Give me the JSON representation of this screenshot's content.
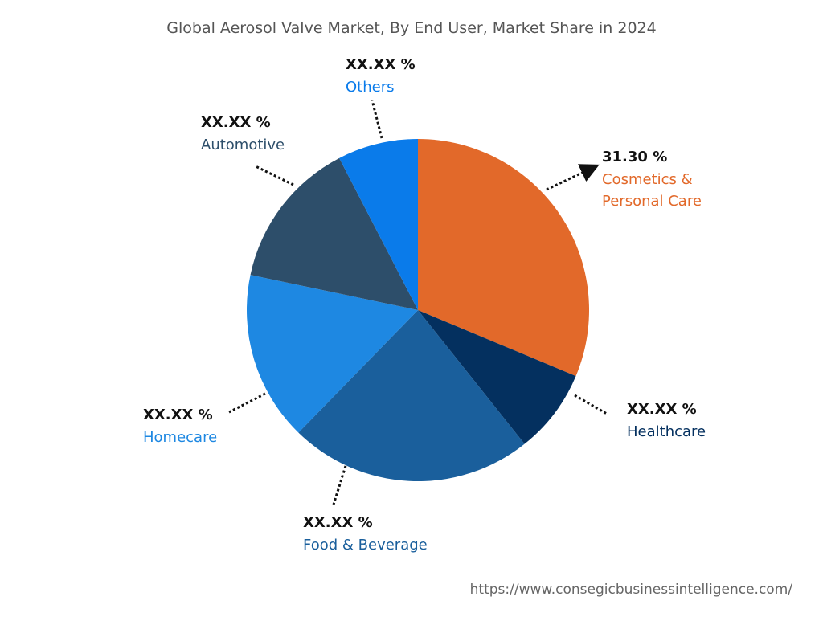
{
  "chart_data": {
    "type": "pie",
    "title": "Global Aerosol Valve Market, By End User, Market Share in 2024",
    "categories": [
      "Cosmetics & Personal Care",
      "Healthcare",
      "Food & Beverage",
      "Homecare",
      "Automotive",
      "Others"
    ],
    "values": [
      31.3,
      8.0,
      23.0,
      16.0,
      14.1,
      7.6
    ],
    "value_labels": [
      "31.30 %",
      "XX.XX %",
      "XX.XX %",
      "XX.XX %",
      "XX.XX %",
      "XX.XX %"
    ],
    "colors": [
      "#e2692a",
      "#04305f",
      "#1a5f9c",
      "#1e88e2",
      "#2d4e6a",
      "#0a7bea"
    ],
    "label_colors": [
      "#e2692a",
      "#04305f",
      "#1a5f9c",
      "#1e88e2",
      "#2d4e6a",
      "#0a7bea"
    ]
  },
  "footer": "https://www.consegicbusinessintelligence.com/"
}
